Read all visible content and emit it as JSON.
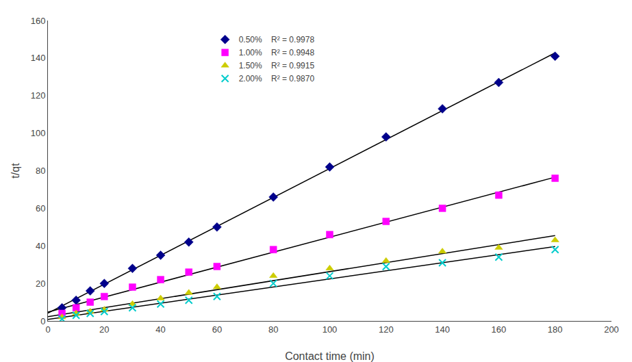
{
  "chart_data": {
    "type": "scatter",
    "xlabel": "Contact time (min)",
    "ylabel": "t/qt",
    "xlim": [
      0,
      200
    ],
    "ylim": [
      0,
      160
    ],
    "xticks": [
      0,
      20,
      40,
      60,
      80,
      100,
      120,
      140,
      160,
      180,
      200
    ],
    "yticks": [
      0,
      20,
      40,
      60,
      80,
      100,
      120,
      140,
      160
    ],
    "grid": false,
    "legend": "upper left",
    "series": [
      {
        "name": "0.50%    R² = 0.9978",
        "color": "#00008B",
        "marker": "diamond",
        "x": [
          5,
          10,
          15,
          20,
          30,
          40,
          50,
          60,
          80,
          100,
          120,
          140,
          160,
          180
        ],
        "values": [
          7,
          11,
          16,
          20,
          28,
          35,
          42,
          50,
          66,
          82,
          98,
          113,
          127,
          141
        ],
        "trend": {
          "x": [
            0,
            180
          ],
          "values": [
            4.1456875,
            142.792091
          ],
          "color": "black"
        }
      },
      {
        "name": "1.00%    R² = 0.9948",
        "color": "#FF00FF",
        "marker": "square",
        "x": [
          5,
          10,
          15,
          20,
          30,
          40,
          50,
          60,
          80,
          100,
          120,
          140,
          160,
          180
        ],
        "values": [
          4,
          7,
          10,
          13,
          18,
          22,
          26,
          29,
          38,
          46,
          53,
          60,
          67,
          76
        ],
        "trend": {
          "x": [
            0,
            180
          ],
          "values": [
            4.6899268,
            76.5724856
          ],
          "color": "black"
        }
      },
      {
        "name": "1.50%    R² = 0.9915",
        "color": "#CCCC00",
        "marker": "triangle-up",
        "x": [
          5,
          10,
          15,
          20,
          30,
          40,
          50,
          60,
          80,
          100,
          120,
          140,
          160,
          180
        ],
        "values": [
          2,
          4,
          5,
          6,
          9,
          12,
          15,
          18,
          24,
          28,
          32,
          37,
          39,
          43
        ],
        "trend": {
          "x": [
            0,
            180
          ],
          "values": [
            2.2486474,
            45.469844
          ],
          "color": "black"
        }
      },
      {
        "name": "2.00%    R² = 0.9870",
        "color": "#00CCCC",
        "marker": "x",
        "x": [
          5,
          10,
          15,
          20,
          30,
          40,
          50,
          60,
          80,
          100,
          120,
          140,
          160,
          180
        ],
        "values": [
          1,
          3,
          4,
          5,
          7,
          9,
          11,
          13,
          20,
          24,
          29,
          31,
          34,
          38
        ],
        "trend": {
          "x": [
            0,
            180
          ],
          "values": [
            0.808084,
            39.6037555
          ],
          "color": "black"
        }
      }
    ]
  }
}
